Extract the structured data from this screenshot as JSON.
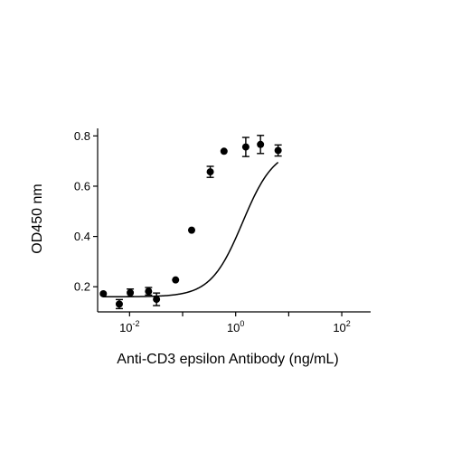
{
  "chart_data": {
    "type": "scatter",
    "xlabel": "Anti-CD3 epsilon Antibody (ng/mL)",
    "ylabel": "OD450 nm",
    "x_scale": "log10",
    "xlim": [
      0.0025,
      350
    ],
    "ylim": [
      0.1,
      0.83
    ],
    "x_ticks": [
      {
        "value": 0.01,
        "base": "10",
        "exp": "-2"
      },
      {
        "value": 1,
        "base": "10",
        "exp": "0"
      },
      {
        "value": 100,
        "base": "10",
        "exp": "2"
      }
    ],
    "y_ticks": [
      {
        "value": 0.2,
        "label": "0.2"
      },
      {
        "value": 0.4,
        "label": "0.4"
      },
      {
        "value": 0.6,
        "label": "0.6"
      },
      {
        "value": 0.8,
        "label": "0.8"
      }
    ],
    "grid": false,
    "points": [
      {
        "x": 0.0032,
        "y": 0.172,
        "err": 0.0
      },
      {
        "x": 0.0064,
        "y": 0.131,
        "err": 0.018
      },
      {
        "x": 0.0103,
        "y": 0.176,
        "err": 0.015
      },
      {
        "x": 0.0228,
        "y": 0.182,
        "err": 0.015
      },
      {
        "x": 0.0322,
        "y": 0.15,
        "err": 0.025
      },
      {
        "x": 0.0737,
        "y": 0.227,
        "err": 0.0
      },
      {
        "x": 0.1479,
        "y": 0.425,
        "err": 0.0
      },
      {
        "x": 0.3318,
        "y": 0.657,
        "err": 0.022
      },
      {
        "x": 0.6026,
        "y": 0.739,
        "err": 0.0
      },
      {
        "x": 1.5514,
        "y": 0.756,
        "err": 0.038
      },
      {
        "x": 2.9376,
        "y": 0.766,
        "err": 0.036
      },
      {
        "x": 6.3097,
        "y": 0.742,
        "err": 0.022
      }
    ],
    "fit": {
      "model": "4PL",
      "bottom": 0.16,
      "top": 0.752,
      "ec50": 1.35,
      "hill": 1.45
    },
    "colors": {
      "points": "#000000",
      "curve": "#000000",
      "axes": "#000000"
    }
  }
}
